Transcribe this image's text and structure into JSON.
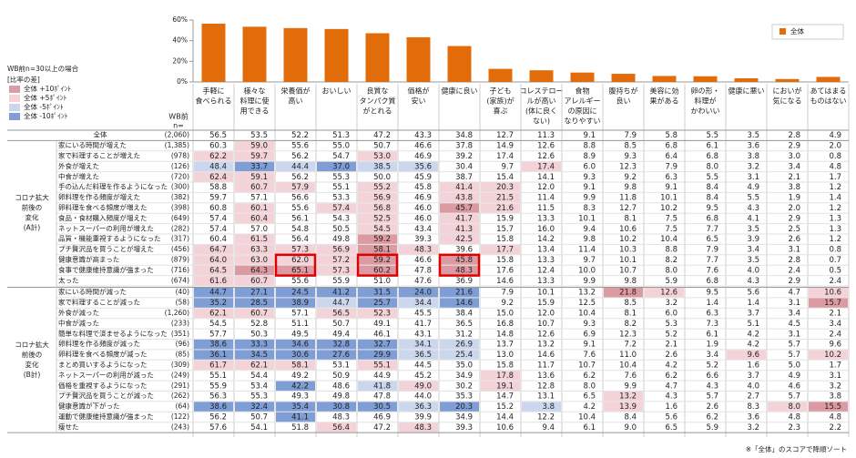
{
  "bar_chart": {
    "ylim": [
      0,
      60
    ],
    "yticks": [
      {
        "value": 0,
        "label": "0%"
      },
      {
        "value": 20,
        "label": "20%"
      },
      {
        "value": 40,
        "label": "40%"
      },
      {
        "value": 60,
        "label": "60%"
      }
    ],
    "color": "#e36c0a",
    "legend": "全体"
  },
  "legend": {
    "note": "WB前n=30以上の場合",
    "title": "[比率の差]",
    "rules": [
      {
        "label": "全体 +10ﾎﾟｲﾝﾄ",
        "color": "#dc9aa2",
        "op": ">=",
        "diff": 10
      },
      {
        "label": "全体 +5ﾎﾟｲﾝﾄ",
        "color": "#f3d3d7",
        "op": ">=",
        "diff": 5
      },
      {
        "label": "全体 -5ﾎﾟｲﾝﾄ",
        "color": "#cbd7ee",
        "op": "<=",
        "diff": -5
      },
      {
        "label": "全体 -10ﾎﾟｲﾝﾄ",
        "color": "#7f9ed6",
        "op": "<=",
        "diff": -10
      }
    ]
  },
  "table": {
    "n_header": [
      "WB前",
      "n="
    ],
    "columns": [
      [
        "手軽に",
        "食べられる"
      ],
      [
        "様々な",
        "料理に使",
        "用できる"
      ],
      [
        "栄養価が",
        "高い"
      ],
      [
        "おいしい"
      ],
      [
        "良質な",
        "タンパク質",
        "がとれる"
      ],
      [
        "価格が",
        "安い"
      ],
      [
        "健康に良い"
      ],
      [
        "子ども",
        "(家族)が",
        "喜ぶ"
      ],
      [
        "コレステロー",
        "ルが高い",
        "(体に良く",
        "ない)"
      ],
      [
        "食物",
        "アレルギー",
        "の原因に",
        "なりやすい"
      ],
      [
        "腹持ちが",
        "良い"
      ],
      [
        "美容に効",
        "果がある"
      ],
      [
        "卵の形・",
        "料理が",
        "かわいい"
      ],
      [
        "健康に悪い"
      ],
      [
        "においが",
        "気になる"
      ],
      [
        "あてはまる",
        "ものはない"
      ]
    ],
    "overall": {
      "label": "全体",
      "n": "(2,060)",
      "values": [
        "56.5",
        "53.5",
        "52.2",
        "51.3",
        "47.2",
        "43.3",
        "34.8",
        "12.7",
        "11.3",
        "9.1",
        "7.9",
        "5.8",
        "5.5",
        "3.5",
        "2.8",
        "4.9"
      ]
    },
    "groups": [
      {
        "label": [
          "コロナ拡大",
          "前後の",
          "変化",
          "(A計)"
        ],
        "rows": [
          {
            "label": "家にいる時間が増えた",
            "n": "(1,385)",
            "values": [
              "60.3",
              "59.0",
              "55.6",
              "55.0",
              "50.7",
              "46.6",
              "37.8",
              "14.9",
              "12.6",
              "8.8",
              "8.5",
              "6.8",
              "6.1",
              "3.6",
              "2.9",
              "2.0"
            ]
          },
          {
            "label": "家で料理することが増えた",
            "n": "(978)",
            "values": [
              "62.2",
              "59.7",
              "56.2",
              "54.7",
              "53.0",
              "46.9",
              "39.2",
              "17.4",
              "12.6",
              "8.9",
              "9.3",
              "6.4",
              "6.8",
              "3.8",
              "3.0",
              "0.8"
            ]
          },
          {
            "label": "外食が増えた",
            "n": "(126)",
            "values": [
              "48.4",
              "33.7",
              "44.4",
              "37.0",
              "38.5",
              "35.6",
              "30.4",
              "9.7",
              "17.4",
              "6.0",
              "12.3",
              "7.9",
              "8.0",
              "3.2",
              "3.4",
              "4.8"
            ]
          },
          {
            "label": "中食が増えた",
            "n": "(720)",
            "values": [
              "62.4",
              "59.1",
              "56.2",
              "55.3",
              "50.0",
              "45.9",
              "38.7",
              "15.4",
              "14.1",
              "9.3",
              "9.2",
              "6.3",
              "5.5",
              "3.1",
              "2.1",
              "1.7"
            ]
          },
          {
            "label": "手の込んだ料理を作るようになった",
            "n": "(300)",
            "values": [
              "58.8",
              "60.7",
              "57.9",
              "55.1",
              "55.2",
              "45.8",
              "41.4",
              "20.3",
              "12.0",
              "9.1",
              "9.8",
              "9.1",
              "8.4",
              "4.9",
              "3.8",
              "1.2"
            ]
          },
          {
            "label": "卵料理を作る頻度が増えた",
            "n": "(382)",
            "values": [
              "59.7",
              "57.1",
              "56.6",
              "53.3",
              "56.9",
              "46.9",
              "43.8",
              "21.5",
              "11.4",
              "9.9",
              "11.8",
              "10.1",
              "8.4",
              "5.5",
              "1.9",
              "1.4"
            ]
          },
          {
            "label": "卵料理を食べる頻度が増えた",
            "n": "(398)",
            "values": [
              "60.8",
              "60.1",
              "55.6",
              "57.4",
              "56.8",
              "46.0",
              "45.7",
              "21.6",
              "11.5",
              "8.3",
              "12.7",
              "10.2",
              "9.5",
              "4.3",
              "2.0",
              "1.2"
            ]
          },
          {
            "label": "食品・食材購入頻度が増えた",
            "n": "(649)",
            "values": [
              "57.4",
              "60.4",
              "56.1",
              "54.3",
              "52.5",
              "46.0",
              "41.7",
              "15.9",
              "13.3",
              "10.1",
              "8.1",
              "7.5",
              "6.8",
              "4.1",
              "2.9",
              "1.3"
            ]
          },
          {
            "label": "ネットスーパーの利用が増えた",
            "n": "(282)",
            "values": [
              "57.4",
              "57.0",
              "54.8",
              "50.5",
              "54.5",
              "43.4",
              "41.3",
              "15.7",
              "16.0",
              "9.4",
              "10.6",
              "7.5",
              "7.7",
              "3.5",
              "2.5",
              "1.3"
            ]
          },
          {
            "label": "品質・機能重視するようになった",
            "n": "(317)",
            "values": [
              "60.4",
              "61.5",
              "56.4",
              "49.8",
              "59.2",
              "39.3",
              "42.5",
              "15.8",
              "14.2",
              "9.8",
              "10.2",
              "10.4",
              "6.5",
              "3.9",
              "2.6",
              "1.2"
            ]
          },
          {
            "label": "プチ贅沢品を買うことが増えた",
            "n": "(456)",
            "values": [
              "64.7",
              "63.3",
              "57.3",
              "56.9",
              "58.1",
              "48.3",
              "39.6",
              "17.7",
              "13.4",
              "11.4",
              "10.3",
              "8.8",
              "7.9",
              "3.4",
              "3.1",
              "0.8"
            ]
          },
          {
            "label": "健康意識が高まった",
            "n": "(879)",
            "values": [
              "64.0",
              "63.0",
              "62.0",
              "57.2",
              "59.2",
              "46.6",
              "45.8",
              "15.8",
              "13.3",
              "9.7",
              "10.1",
              "8.2",
              "7.7",
              "3.5",
              "2.8",
              "0.7"
            ]
          },
          {
            "label": "食事で健康維持意識が強まった",
            "n": "(716)",
            "values": [
              "64.5",
              "64.3",
              "65.1",
              "57.3",
              "60.2",
              "47.8",
              "48.3",
              "17.6",
              "12.4",
              "10.0",
              "10.7",
              "8.0",
              "7.6",
              "4.0",
              "2.4",
              "0.5"
            ]
          },
          {
            "label": "太った",
            "n": "(674)",
            "values": [
              "61.6",
              "60.7",
              "55.6",
              "55.9",
              "51.0",
              "47.6",
              "36.9",
              "14.6",
              "13.3",
              "9.9",
              "9.8",
              "5.9",
              "6.8",
              "4.3",
              "2.9",
              "2.4"
            ]
          }
        ]
      },
      {
        "label": [
          "コロナ拡大",
          "前後の",
          "変化",
          "(B計)"
        ],
        "rows": [
          {
            "label": "家にいる時間が減った",
            "n": "(40)",
            "values": [
              "44.7",
              "27.1",
              "24.5",
              "41.2",
              "31.5",
              "24.0",
              "21.6",
              "7.9",
              "10.1",
              "13.2",
              "21.8",
              "12.6",
              "9.5",
              "5.6",
              "4.7",
              "10.6"
            ]
          },
          {
            "label": "家で料理することが減った",
            "n": "(58)",
            "values": [
              "35.2",
              "28.5",
              "38.9",
              "44.7",
              "25.7",
              "34.4",
              "14.6",
              "9.2",
              "15.9",
              "12.5",
              "8.5",
              "3.2",
              "1.4",
              "1.4",
              "3.1",
              "15.7"
            ]
          },
          {
            "label": "外食が減った",
            "n": "(1,260)",
            "values": [
              "62.1",
              "60.7",
              "57.1",
              "56.5",
              "52.3",
              "45.5",
              "38.4",
              "15.0",
              "12.0",
              "10.4",
              "8.1",
              "6.0",
              "6.3",
              "3.7",
              "3.4",
              "2.1"
            ]
          },
          {
            "label": "中食が減った",
            "n": "(233)",
            "values": [
              "54.5",
              "52.8",
              "51.1",
              "50.7",
              "49.1",
              "41.7",
              "36.5",
              "16.8",
              "10.7",
              "9.3",
              "8.2",
              "5.3",
              "7.3",
              "5.1",
              "4.5",
              "3.4"
            ]
          },
          {
            "label": "簡単な料理で済ませるようになった",
            "n": "(351)",
            "values": [
              "57.7",
              "50.3",
              "49.5",
              "49.4",
              "46.1",
              "43.1",
              "31.2",
              "14.8",
              "12.6",
              "6.9",
              "12.3",
              "5.2",
              "6.1",
              "4.2",
              "3.1",
              "2.4"
            ]
          },
          {
            "label": "卵料理を作る頻度が減った",
            "n": "(96)",
            "values": [
              "38.6",
              "33.3",
              "34.6",
              "32.8",
              "32.7",
              "34.1",
              "26.9",
              "13.7",
              "13.2",
              "9.1",
              "7.2",
              "2.1",
              "1.9",
              "4.2",
              "5.7",
              "9.6"
            ]
          },
          {
            "label": "卵料理を食べる頻度が減った",
            "n": "(85)",
            "values": [
              "36.1",
              "34.5",
              "30.6",
              "27.6",
              "29.9",
              "36.5",
              "25.4",
              "13.0",
              "14.6",
              "7.6",
              "11.0",
              "2.6",
              "3.4",
              "9.6",
              "5.7",
              "10.2"
            ]
          },
          {
            "label": "まとめ買いするようになった",
            "n": "(309)",
            "values": [
              "61.7",
              "62.1",
              "58.1",
              "53.1",
              "55.1",
              "44.5",
              "35.0",
              "15.8",
              "11.7",
              "10.7",
              "10.4",
              "4.2",
              "5.2",
              "1.6",
              "5.0",
              "1.7"
            ]
          },
          {
            "label": "ネットスーパーの利用が減った",
            "n": "(249)",
            "values": [
              "55.1",
              "54.4",
              "49.2",
              "50.9",
              "44.9",
              "45.2",
              "34.9",
              "17.8",
              "13.6",
              "6.2",
              "7.6",
              "6.2",
              "6.6",
              "3.7",
              "4.9",
              "3.1"
            ]
          },
          {
            "label": "価格を重視するようになった",
            "n": "(291)",
            "values": [
              "55.9",
              "53.4",
              "42.2",
              "48.6",
              "41.8",
              "49.0",
              "30.2",
              "19.1",
              "12.8",
              "8.0",
              "9.9",
              "4.7",
              "4.3",
              "4.0",
              "4.6",
              "3.2"
            ]
          },
          {
            "label": "プチ贅沢品を買うことが減った",
            "n": "(262)",
            "values": [
              "56.3",
              "55.3",
              "49.3",
              "49.8",
              "47.8",
              "44.0",
              "35.3",
              "14.7",
              "13.1",
              "6.5",
              "13.2",
              "4.3",
              "5.7",
              "2.7",
              "5.7",
              "3.8"
            ]
          },
          {
            "label": "健康意識が下がった",
            "n": "(64)",
            "values": [
              "38.6",
              "32.4",
              "35.4",
              "30.8",
              "30.5",
              "36.3",
              "20.3",
              "15.2",
              "3.8",
              "4.2",
              "13.9",
              "1.6",
              "2.6",
              "8.3",
              "8.0",
              "15.5"
            ]
          },
          {
            "label": "運動で健康維持意識が強まった",
            "n": "(122)",
            "values": [
              "56.2",
              "50.7",
              "41.1",
              "48.3",
              "46.9",
              "39.9",
              "34.9",
              "14.4",
              "12.2",
              "10.4",
              "8.4",
              "5.6",
              "6.2",
              "3.6",
              "4.8",
              "4.8"
            ]
          },
          {
            "label": "痩せた",
            "n": "(243)",
            "values": [
              "57.6",
              "54.1",
              "51.8",
              "56.4",
              "47.2",
              "48.3",
              "39.3",
              "10.6",
              "9.4",
              "6.1",
              "9.0",
              "6.5",
              "5.9",
              "3.2",
              "2.3",
              "2.2"
            ]
          }
        ]
      }
    ],
    "red_boxes": [
      {
        "group": 0,
        "rows": [
          11,
          12
        ],
        "col": 2
      },
      {
        "group": 0,
        "rows": [
          11,
          12
        ],
        "col": 4
      },
      {
        "group": 0,
        "rows": [
          11,
          12
        ],
        "col": 6
      }
    ],
    "red_box_color": "#e00000"
  },
  "footnote": "※「全体」のスコアで降順ソート"
}
